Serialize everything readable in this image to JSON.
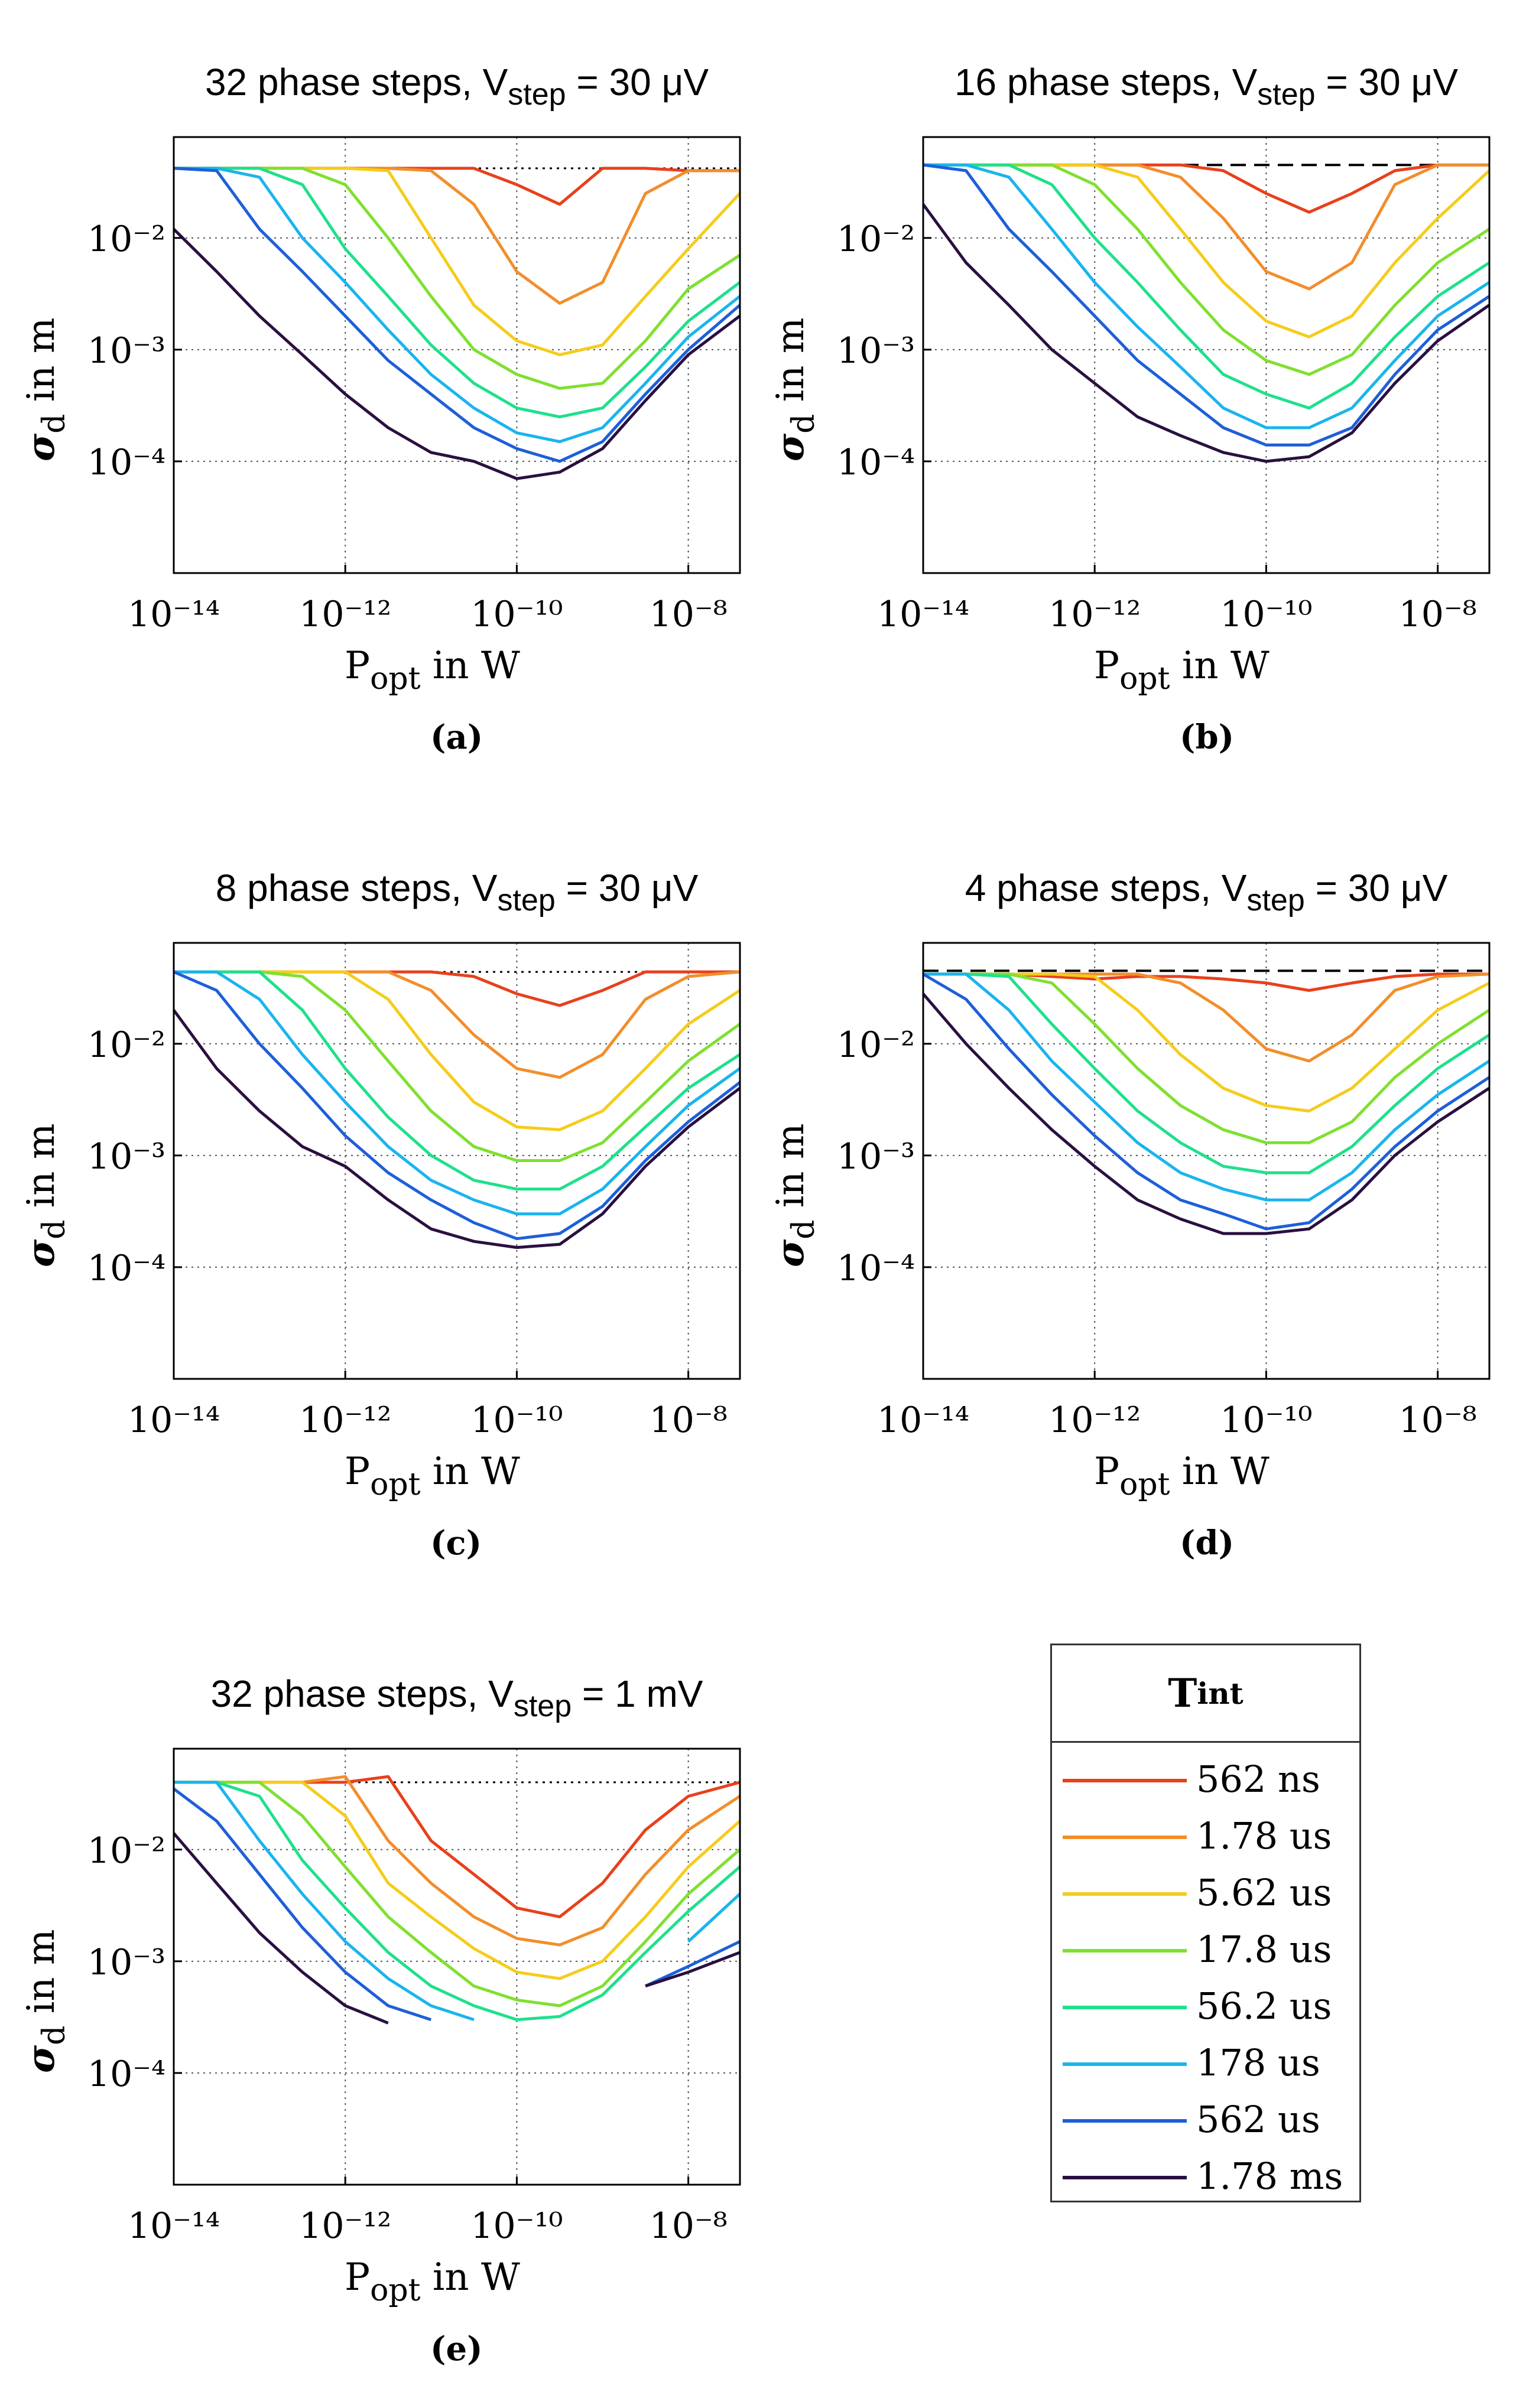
{
  "figure": {
    "x_axis_label_main": "P",
    "x_axis_label_sub": "opt",
    "x_axis_label_rest": " in W",
    "y_axis_label_main": "σ",
    "y_axis_label_sub": "d",
    "y_axis_label_rest": " in m"
  },
  "legend": {
    "title_main": "T",
    "title_sub": "int",
    "items": [
      {
        "label": "562 ns",
        "color": "#e8401c"
      },
      {
        "label": "1.78 us",
        "color": "#f28e2b"
      },
      {
        "label": "5.62 us",
        "color": "#f5cc1b"
      },
      {
        "label": "17.8 us",
        "color": "#7fe030"
      },
      {
        "label": "56.2 us",
        "color": "#1fe08c"
      },
      {
        "label": "178 us",
        "color": "#1ab4ee"
      },
      {
        "label": "562 us",
        "color": "#1e5fd8"
      },
      {
        "label": "1.78 ms",
        "color": "#2a1040"
      }
    ]
  },
  "chart_data": [
    {
      "id": "a",
      "type": "line",
      "panel_label": "(a)",
      "title": "32 phase steps, V",
      "title_sub": "step",
      "title_rest": " = 30 μV",
      "xscale": "log",
      "yscale": "log",
      "xlim": [
        1e-14,
        4e-08
      ],
      "ylim": [
        1e-05,
        0.08
      ],
      "xticks": [
        "10⁻¹⁴",
        "10⁻¹²",
        "10⁻¹⁰",
        "10⁻⁸"
      ],
      "yticks": [
        "10⁻²",
        "10⁻³",
        "10⁻⁴"
      ],
      "reference_line": {
        "y": 0.042,
        "style": "dotted"
      },
      "x_log": [
        -14,
        -13.5,
        -13,
        -12.5,
        -12,
        -11.5,
        -11,
        -10.5,
        -10,
        -9.5,
        -9,
        -8.5,
        -8,
        -7.4
      ],
      "series": [
        {
          "name": "562 ns",
          "values": [
            0.042,
            0.042,
            0.042,
            0.042,
            0.042,
            0.042,
            0.042,
            0.042,
            0.03,
            0.02,
            0.042,
            0.042,
            0.04,
            0.04
          ]
        },
        {
          "name": "1.78 us",
          "values": [
            0.042,
            0.042,
            0.042,
            0.042,
            0.042,
            0.042,
            0.04,
            0.02,
            0.005,
            0.0026,
            0.004,
            0.025,
            0.04,
            0.04
          ]
        },
        {
          "name": "5.62 us",
          "values": [
            0.042,
            0.042,
            0.042,
            0.042,
            0.042,
            0.04,
            0.01,
            0.0025,
            0.0012,
            0.0009,
            0.0011,
            0.003,
            0.008,
            0.025
          ]
        },
        {
          "name": "17.8 us",
          "values": [
            0.042,
            0.042,
            0.042,
            0.042,
            0.03,
            0.01,
            0.003,
            0.001,
            0.0006,
            0.00045,
            0.0005,
            0.0012,
            0.0035,
            0.007
          ]
        },
        {
          "name": "56.2 us",
          "values": [
            0.042,
            0.042,
            0.042,
            0.03,
            0.008,
            0.003,
            0.0011,
            0.0005,
            0.0003,
            0.00025,
            0.0003,
            0.0007,
            0.0018,
            0.004
          ]
        },
        {
          "name": "178 us",
          "values": [
            0.042,
            0.042,
            0.035,
            0.01,
            0.004,
            0.0015,
            0.0006,
            0.0003,
            0.00018,
            0.00015,
            0.0002,
            0.0005,
            0.0013,
            0.003
          ]
        },
        {
          "name": "562 us",
          "values": [
            0.042,
            0.04,
            0.012,
            0.005,
            0.002,
            0.0008,
            0.0004,
            0.0002,
            0.00013,
            0.0001,
            0.00015,
            0.0004,
            0.001,
            0.0025
          ]
        },
        {
          "name": "1.78 ms",
          "values": [
            0.012,
            0.005,
            0.002,
            0.0009,
            0.0004,
            0.0002,
            0.00012,
            0.0001,
            7e-05,
            8e-05,
            0.00013,
            0.00035,
            0.0009,
            0.002
          ]
        }
      ]
    },
    {
      "id": "b",
      "type": "line",
      "panel_label": "(b)",
      "title": "16 phase steps, V",
      "title_sub": "step",
      "title_rest": " = 30 μV",
      "xscale": "log",
      "yscale": "log",
      "xlim": [
        1e-14,
        4e-08
      ],
      "ylim": [
        1e-05,
        0.08
      ],
      "xticks": [
        "10⁻¹⁴",
        "10⁻¹²",
        "10⁻¹⁰",
        "10⁻⁸"
      ],
      "yticks": [
        "10⁻²",
        "10⁻³",
        "10⁻⁴"
      ],
      "reference_line": {
        "y": 0.045,
        "style": "dashed"
      },
      "x_log": [
        -14,
        -13.5,
        -13,
        -12.5,
        -12,
        -11.5,
        -11,
        -10.5,
        -10,
        -9.5,
        -9,
        -8.5,
        -8,
        -7.4
      ],
      "series": [
        {
          "name": "562 ns",
          "values": [
            0.045,
            0.045,
            0.045,
            0.045,
            0.045,
            0.045,
            0.045,
            0.04,
            0.025,
            0.017,
            0.025,
            0.04,
            0.045,
            0.045
          ]
        },
        {
          "name": "1.78 us",
          "values": [
            0.045,
            0.045,
            0.045,
            0.045,
            0.045,
            0.045,
            0.035,
            0.015,
            0.005,
            0.0035,
            0.006,
            0.03,
            0.045,
            0.045
          ]
        },
        {
          "name": "5.62 us",
          "values": [
            0.045,
            0.045,
            0.045,
            0.045,
            0.045,
            0.035,
            0.012,
            0.004,
            0.0018,
            0.0013,
            0.002,
            0.006,
            0.015,
            0.04
          ]
        },
        {
          "name": "17.8 us",
          "values": [
            0.045,
            0.045,
            0.045,
            0.045,
            0.03,
            0.012,
            0.004,
            0.0015,
            0.0008,
            0.0006,
            0.0009,
            0.0025,
            0.006,
            0.012
          ]
        },
        {
          "name": "56.2 us",
          "values": [
            0.045,
            0.045,
            0.045,
            0.03,
            0.01,
            0.004,
            0.0015,
            0.0006,
            0.0004,
            0.0003,
            0.0005,
            0.0013,
            0.003,
            0.006
          ]
        },
        {
          "name": "178 us",
          "values": [
            0.045,
            0.045,
            0.035,
            0.012,
            0.004,
            0.0016,
            0.0007,
            0.0003,
            0.0002,
            0.0002,
            0.0003,
            0.0008,
            0.002,
            0.004
          ]
        },
        {
          "name": "562 us",
          "values": [
            0.045,
            0.04,
            0.012,
            0.005,
            0.002,
            0.0008,
            0.0004,
            0.0002,
            0.00014,
            0.00014,
            0.0002,
            0.0006,
            0.0015,
            0.003
          ]
        },
        {
          "name": "1.78 ms",
          "values": [
            0.02,
            0.006,
            0.0025,
            0.001,
            0.0005,
            0.00025,
            0.00017,
            0.00012,
            0.0001,
            0.00011,
            0.00018,
            0.0005,
            0.0012,
            0.0025
          ]
        }
      ]
    },
    {
      "id": "c",
      "type": "line",
      "panel_label": "(c)",
      "title": "8 phase steps, V",
      "title_sub": "step",
      "title_rest": " = 30 μV",
      "xscale": "log",
      "yscale": "log",
      "xlim": [
        1e-14,
        4e-08
      ],
      "ylim": [
        1e-05,
        0.08
      ],
      "xticks": [
        "10⁻¹⁴",
        "10⁻¹²",
        "10⁻¹⁰",
        "10⁻⁸"
      ],
      "yticks": [
        "10⁻²",
        "10⁻³",
        "10⁻⁴"
      ],
      "reference_line": {
        "y": 0.044,
        "style": "dotted"
      },
      "x_log": [
        -14,
        -13.5,
        -13,
        -12.5,
        -12,
        -11.5,
        -11,
        -10.5,
        -10,
        -9.5,
        -9,
        -8.5,
        -8,
        -7.4
      ],
      "series": [
        {
          "name": "562 ns",
          "values": [
            0.044,
            0.044,
            0.044,
            0.044,
            0.044,
            0.044,
            0.044,
            0.04,
            0.028,
            0.022,
            0.03,
            0.044,
            0.044,
            0.044
          ]
        },
        {
          "name": "1.78 us",
          "values": [
            0.044,
            0.044,
            0.044,
            0.044,
            0.044,
            0.044,
            0.03,
            0.012,
            0.006,
            0.005,
            0.008,
            0.025,
            0.04,
            0.044
          ]
        },
        {
          "name": "5.62 us",
          "values": [
            0.044,
            0.044,
            0.044,
            0.044,
            0.044,
            0.025,
            0.008,
            0.003,
            0.0018,
            0.0017,
            0.0025,
            0.006,
            0.015,
            0.03
          ]
        },
        {
          "name": "17.8 us",
          "values": [
            0.044,
            0.044,
            0.044,
            0.04,
            0.02,
            0.007,
            0.0025,
            0.0012,
            0.0009,
            0.0009,
            0.0013,
            0.003,
            0.007,
            0.015
          ]
        },
        {
          "name": "56.2 us",
          "values": [
            0.044,
            0.044,
            0.044,
            0.02,
            0.006,
            0.0022,
            0.001,
            0.0006,
            0.0005,
            0.0005,
            0.0008,
            0.0018,
            0.004,
            0.008
          ]
        },
        {
          "name": "178 us",
          "values": [
            0.044,
            0.044,
            0.025,
            0.008,
            0.003,
            0.0012,
            0.0006,
            0.0004,
            0.0003,
            0.0003,
            0.0005,
            0.0012,
            0.0028,
            0.006
          ]
        },
        {
          "name": "562 us",
          "values": [
            0.044,
            0.03,
            0.01,
            0.004,
            0.0015,
            0.0007,
            0.0004,
            0.00025,
            0.00018,
            0.0002,
            0.00035,
            0.0009,
            0.002,
            0.0045
          ]
        },
        {
          "name": "1.78 ms",
          "values": [
            0.02,
            0.006,
            0.0025,
            0.0012,
            0.0008,
            0.0004,
            0.00022,
            0.00017,
            0.00015,
            0.00016,
            0.0003,
            0.0008,
            0.0018,
            0.004
          ]
        }
      ]
    },
    {
      "id": "d",
      "type": "line",
      "panel_label": "(d)",
      "title": "4 phase steps, V",
      "title_sub": "step",
      "title_rest": " = 30 μV",
      "xscale": "log",
      "yscale": "log",
      "xlim": [
        1e-14,
        4e-08
      ],
      "ylim": [
        1e-05,
        0.08
      ],
      "xticks": [
        "10⁻¹⁴",
        "10⁻¹²",
        "10⁻¹⁰",
        "10⁻⁸"
      ],
      "yticks": [
        "10⁻²",
        "10⁻³",
        "10⁻⁴"
      ],
      "reference_line": {
        "y": 0.045,
        "style": "dashed"
      },
      "x_log": [
        -14,
        -13.5,
        -13,
        -12.5,
        -12,
        -11.5,
        -11,
        -10.5,
        -10,
        -9.5,
        -9,
        -8.5,
        -8,
        -7.4
      ],
      "series": [
        {
          "name": "562 ns",
          "values": [
            0.042,
            0.042,
            0.042,
            0.04,
            0.038,
            0.04,
            0.04,
            0.038,
            0.035,
            0.03,
            0.035,
            0.04,
            0.042,
            0.042
          ]
        },
        {
          "name": "1.78 us",
          "values": [
            0.042,
            0.042,
            0.042,
            0.042,
            0.042,
            0.042,
            0.035,
            0.02,
            0.009,
            0.007,
            0.012,
            0.03,
            0.04,
            0.042
          ]
        },
        {
          "name": "5.62 us",
          "values": [
            0.042,
            0.042,
            0.042,
            0.042,
            0.04,
            0.02,
            0.008,
            0.004,
            0.0028,
            0.0025,
            0.004,
            0.009,
            0.02,
            0.035
          ]
        },
        {
          "name": "17.8 us",
          "values": [
            0.042,
            0.042,
            0.042,
            0.035,
            0.015,
            0.006,
            0.0028,
            0.0017,
            0.0013,
            0.0013,
            0.002,
            0.005,
            0.01,
            0.02
          ]
        },
        {
          "name": "56.2 us",
          "values": [
            0.042,
            0.042,
            0.04,
            0.015,
            0.006,
            0.0025,
            0.0013,
            0.0008,
            0.0007,
            0.0007,
            0.0012,
            0.0028,
            0.006,
            0.012
          ]
        },
        {
          "name": "178 us",
          "values": [
            0.042,
            0.042,
            0.02,
            0.007,
            0.003,
            0.0013,
            0.0007,
            0.0005,
            0.0004,
            0.0004,
            0.0007,
            0.0017,
            0.0035,
            0.007
          ]
        },
        {
          "name": "562 us",
          "values": [
            0.042,
            0.025,
            0.009,
            0.0035,
            0.0015,
            0.0007,
            0.0004,
            0.0003,
            0.00022,
            0.00025,
            0.0005,
            0.0012,
            0.0025,
            0.005
          ]
        },
        {
          "name": "1.78 ms",
          "values": [
            0.028,
            0.01,
            0.004,
            0.0017,
            0.0008,
            0.0004,
            0.00027,
            0.0002,
            0.0002,
            0.00022,
            0.0004,
            0.001,
            0.002,
            0.004
          ]
        }
      ]
    },
    {
      "id": "e",
      "type": "line",
      "panel_label": "(e)",
      "title": "32 phase steps, V",
      "title_sub": "step",
      "title_rest": " = 1 mV",
      "xscale": "log",
      "yscale": "log",
      "xlim": [
        1e-14,
        4e-08
      ],
      "ylim": [
        1e-05,
        0.08
      ],
      "xticks": [
        "10⁻¹⁴",
        "10⁻¹²",
        "10⁻¹⁰",
        "10⁻⁸"
      ],
      "yticks": [
        "10⁻²",
        "10⁻³",
        "10⁻⁴"
      ],
      "reference_line": {
        "y": 0.04,
        "style": "dotted"
      },
      "x_log": [
        -14,
        -13.5,
        -13,
        -12.5,
        -12,
        -11.5,
        -11,
        -10.5,
        -10,
        -9.5,
        -9,
        -8.5,
        -8,
        -7.4
      ],
      "series": [
        {
          "name": "562 ns",
          "values": [
            0.04,
            0.04,
            0.04,
            0.04,
            0.04,
            0.045,
            0.012,
            0.006,
            0.003,
            0.0025,
            0.005,
            0.015,
            0.03,
            0.04
          ]
        },
        {
          "name": "1.78 us",
          "values": [
            0.04,
            0.04,
            0.04,
            0.04,
            0.045,
            0.012,
            0.005,
            0.0025,
            0.0016,
            0.0014,
            0.002,
            0.006,
            0.015,
            0.03
          ]
        },
        {
          "name": "5.62 us",
          "values": [
            0.04,
            0.04,
            0.04,
            0.04,
            0.02,
            0.005,
            0.0025,
            0.0013,
            0.0008,
            0.0007,
            0.001,
            0.0025,
            0.007,
            0.018
          ]
        },
        {
          "name": "17.8 us",
          "values": [
            0.04,
            0.04,
            0.04,
            0.02,
            0.007,
            0.0025,
            0.0012,
            0.0006,
            0.00045,
            0.0004,
            0.0006,
            0.0015,
            0.004,
            0.01
          ]
        },
        {
          "name": "56.2 us",
          "values": [
            0.04,
            0.04,
            0.03,
            0.008,
            0.003,
            0.0012,
            0.0006,
            0.0004,
            0.0003,
            0.00032,
            0.0005,
            0.0012,
            0.0028,
            0.007
          ]
        },
        {
          "name": "178 us",
          "values": [
            0.04,
            0.04,
            0.012,
            0.004,
            0.0015,
            0.0007,
            0.0004,
            0.0003,
            null,
            null,
            null,
            null,
            0.0015,
            0.004
          ]
        },
        {
          "name": "562 us",
          "values": [
            0.035,
            0.018,
            0.006,
            0.002,
            0.0008,
            0.0004,
            0.0003,
            null,
            null,
            null,
            null,
            0.0006,
            0.0009,
            0.0015
          ]
        },
        {
          "name": "1.78 ms",
          "values": [
            0.014,
            0.005,
            0.0018,
            0.0008,
            0.0004,
            0.00028,
            null,
            null,
            null,
            null,
            null,
            0.0006,
            0.0008,
            0.0012
          ]
        }
      ]
    }
  ]
}
